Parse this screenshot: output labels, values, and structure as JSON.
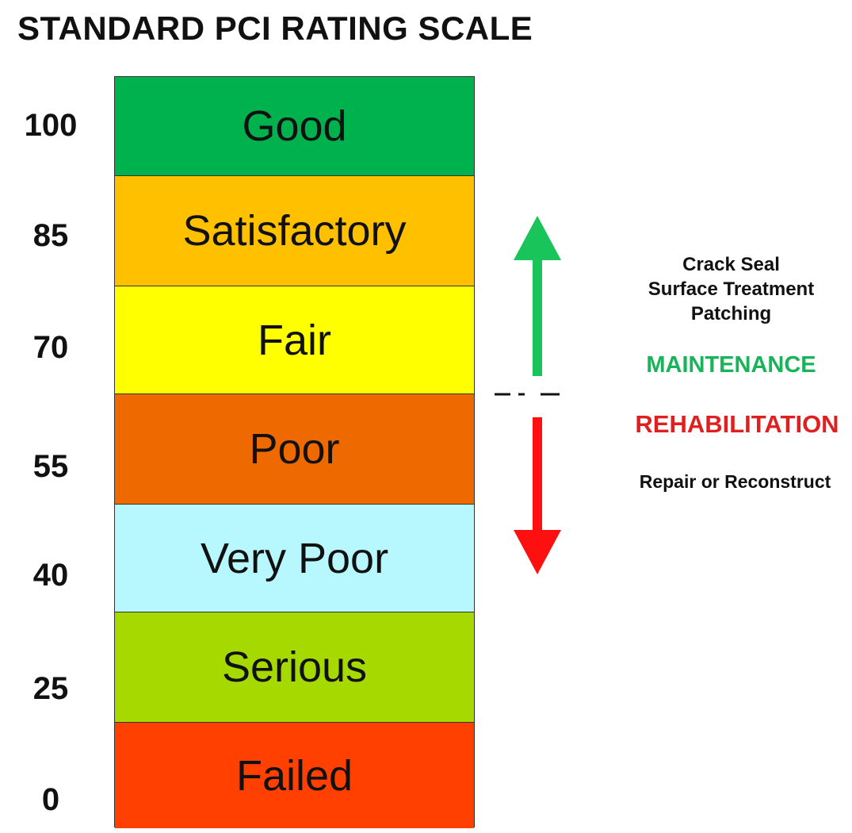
{
  "title": "STANDARD PCI RATING SCALE",
  "scale_labels": [
    "100",
    "85",
    "70",
    "55",
    "40",
    "25",
    "0"
  ],
  "bands": [
    {
      "label": "Good",
      "color": "#00b24e"
    },
    {
      "label": "Satisfactory",
      "color": "#ffc000"
    },
    {
      "label": "Fair",
      "color": "#ffff00"
    },
    {
      "label": "Poor",
      "color": "#ee6a00"
    },
    {
      "label": "Very Poor",
      "color": "#b7f8ff"
    },
    {
      "label": "Serious",
      "color": "#a6d900"
    },
    {
      "label": "Failed",
      "color": "#ff4000"
    }
  ],
  "treatments": [
    "Crack Seal",
    "Surface Treatment",
    "Patching"
  ],
  "maintenance_label": "MAINTENANCE",
  "rehabilitation_label": "REHABILITATION",
  "repair_label": "Repair or Reconstruct",
  "colors": {
    "maintenance": "#19b35a",
    "rehabilitation": "#e02020",
    "up_arrow": "#19c45a",
    "down_arrow": "#ff1010"
  },
  "icons": {
    "up_arrow": "arrow-up-icon",
    "down_arrow": "arrow-down-icon",
    "divider": "dashed-divider"
  }
}
